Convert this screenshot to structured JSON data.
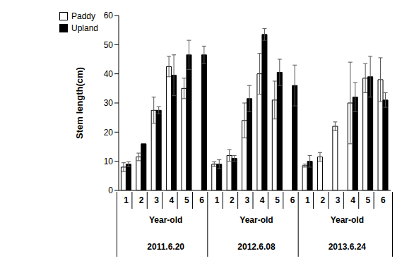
{
  "chart_data": {
    "type": "bar",
    "y_label": "Stem length(cm)",
    "categories": [
      "1",
      "2",
      "3",
      "4",
      "5",
      "6",
      "1",
      "2",
      "3",
      "4",
      "5",
      "6",
      "1",
      "2",
      "3",
      "4",
      "5",
      "6"
    ],
    "groups": [
      {
        "sublabel": "Year-old",
        "label": "2011.6.20"
      },
      {
        "sublabel": "Year-old",
        "label": "2012.6.08"
      },
      {
        "sublabel": "Year-old",
        "label": "2013.6.24"
      }
    ],
    "series": [
      {
        "name": "Paddy",
        "color": "#ffffff",
        "values": [
          8,
          11.5,
          27.5,
          42.5,
          35,
          null,
          9,
          12,
          24,
          40,
          31,
          null,
          8.5,
          11.5,
          22,
          30,
          38.5,
          38
        ],
        "errors": [
          1.5,
          1.3,
          4.5,
          3.5,
          3.5,
          null,
          0.8,
          2,
          6,
          7,
          6.5,
          null,
          0.5,
          1.5,
          1.5,
          14,
          5,
          7.5
        ]
      },
      {
        "name": "Upland",
        "color": "#000000",
        "values": [
          9,
          16,
          27.5,
          39.5,
          46.5,
          46.5,
          9,
          11,
          31.5,
          53.5,
          40.5,
          36,
          10,
          null,
          null,
          32,
          39,
          31
        ],
        "errors": [
          0.8,
          0,
          1.2,
          7,
          5,
          3,
          1.5,
          1,
          4.5,
          2,
          4.5,
          7,
          2,
          null,
          null,
          5,
          7,
          2.5
        ]
      }
    ],
    "ylim": [
      0,
      60
    ],
    "yticks": [
      0,
      10,
      20,
      30,
      40,
      50,
      60
    ],
    "grid": false,
    "legend": "upper left"
  }
}
